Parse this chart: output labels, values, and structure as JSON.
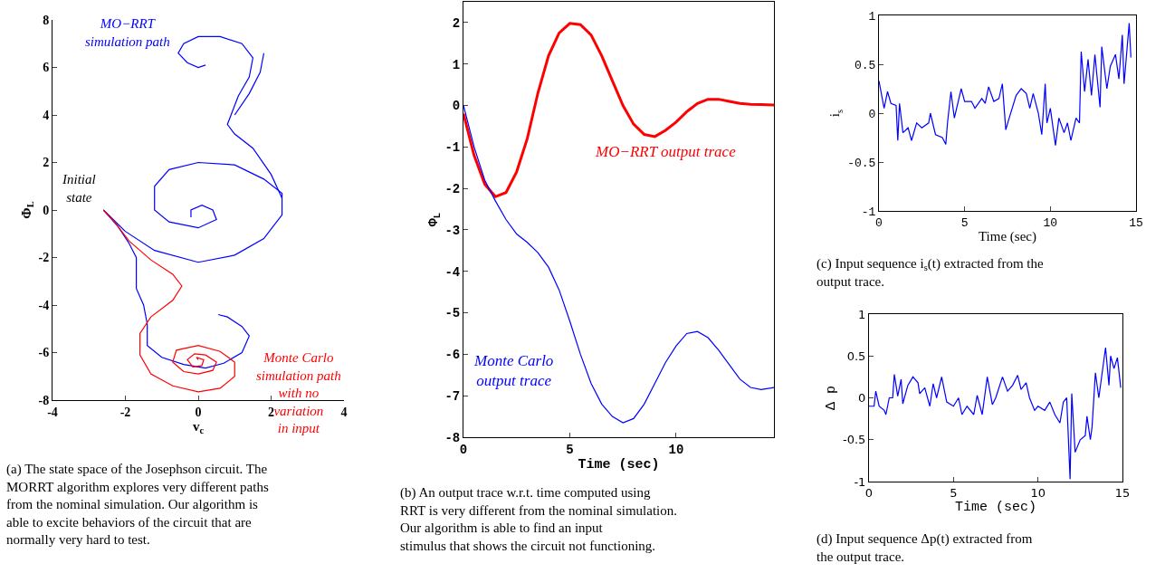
{
  "chart_data": [
    {
      "type": "line",
      "xlabel": "v$_{c}$",
      "ylabel": "Φ$_{L}$",
      "xlim": [
        -4,
        4
      ],
      "ylim": [
        -8,
        8
      ],
      "xticks": [
        -4,
        -2,
        0,
        2,
        4
      ],
      "yticks": [
        -8,
        -6,
        -4,
        -2,
        0,
        2,
        4,
        6,
        8
      ],
      "series": [
        {
          "color": "#0000ff",
          "x": [
            -2.6,
            -2.2,
            -1.9,
            -1.7,
            -1.7,
            -1.7,
            -1.5,
            -1.4,
            -1.4,
            -1.0,
            -0.4,
            0.2,
            0.7,
            1.2,
            1.4,
            1.2,
            0.8,
            0.55
          ],
          "values": [
            0,
            -0.7,
            -1.4,
            -2.0,
            -2.8,
            -3.3,
            -4.0,
            -4.8,
            -5.7,
            -6.2,
            -6.5,
            -6.65,
            -6.45,
            -6.0,
            -5.3,
            -4.9,
            -4.5,
            -4.4
          ]
        },
        {
          "color": "#0000ff",
          "x": [
            -2.6,
            -2.0,
            -1.2,
            0,
            1.0,
            1.8,
            2.3,
            2.3,
            1.8,
            1.0,
            0,
            -0.8,
            -1.2,
            -1.2,
            -0.8,
            0,
            0.5,
            0.4,
            0.1,
            -0.2,
            -0.2
          ],
          "values": [
            0,
            -0.9,
            -1.7,
            -2.2,
            -1.9,
            -1.2,
            -0.2,
            0.7,
            1.3,
            1.9,
            2.0,
            1.7,
            1.0,
            0,
            -0.5,
            -0.75,
            -0.4,
            0,
            0.2,
            0,
            -0.3
          ]
        },
        {
          "color": "#0000ff",
          "x": [
            2.3,
            2.0,
            1.5,
            1.0,
            0.8,
            0.9,
            1.1,
            1.4,
            1.5,
            1.2,
            0.6,
            0,
            -0.4,
            -0.55,
            -0.3,
            0,
            0.2
          ],
          "values": [
            0.5,
            1.5,
            2.6,
            3.2,
            3.6,
            4.0,
            4.8,
            5.6,
            6.4,
            7.0,
            7.3,
            7.3,
            7.0,
            6.6,
            6.2,
            6.0,
            6.1
          ]
        },
        {
          "color": "#0000ff",
          "x": [
            1.8,
            1.7,
            1.4,
            1.0
          ],
          "values": [
            6.6,
            5.8,
            4.9,
            4.0
          ]
        },
        {
          "color": "#ff0000",
          "x": [
            -2.6,
            -2.3,
            -1.9,
            -1.3,
            -0.7,
            -0.45,
            -0.7,
            -1.3,
            -1.6,
            -1.6,
            -1.3,
            -0.7,
            0,
            0.6,
            1.0,
            1.0,
            0.6,
            0,
            -0.6,
            -0.7,
            -0.4,
            0,
            0.4,
            0.5,
            0.2,
            -0.1,
            -0.3,
            -0.15,
            0.1,
            0.15,
            -0.05,
            0
          ],
          "values": [
            0,
            -0.5,
            -1.3,
            -2.1,
            -2.7,
            -3.2,
            -3.8,
            -4.5,
            -5.2,
            -6.1,
            -6.9,
            -7.4,
            -7.65,
            -7.5,
            -7.0,
            -6.4,
            -5.95,
            -5.7,
            -5.9,
            -6.4,
            -6.8,
            -6.9,
            -6.75,
            -6.4,
            -6.1,
            -6.05,
            -6.3,
            -6.6,
            -6.55,
            -6.3,
            -6.2,
            -6.3
          ]
        }
      ],
      "annotations": [
        {
          "text": "MO−RRT\nsimulation path",
          "x": -0.55,
          "y": 6.6
        },
        {
          "text": "Initial\nstate",
          "x": -2.6,
          "y": 0
        },
        {
          "text": "Monte Carlo\nsimulation path\nwith no\nvariation\nin input",
          "x": 1.0,
          "y": -6.4
        },
        "(a) The state space of the Josephson circuit. The\nMORRT algorithm explores very different paths\nfrom the nominal simulation. Our algorithm is\nable to excite behaviors of the circuit that are\nnormally very hard to test."
      ]
    },
    {
      "type": "line",
      "xlabel": "Time (sec)",
      "ylabel": "Φ$_{L}$",
      "xlim": [
        0,
        14.6
      ],
      "ylim": [
        -8,
        2.5
      ],
      "xticks": [
        0,
        5,
        10
      ],
      "yticks": [
        -8,
        -7,
        -6,
        -5,
        -4,
        -3,
        -2,
        -1,
        0,
        1,
        2
      ],
      "series": [
        {
          "color": "#ff0000",
          "x": [
            0,
            0.5,
            1,
            1.5,
            2,
            2.5,
            3,
            3.5,
            4,
            4.5,
            5,
            5.5,
            6,
            6.5,
            7,
            7.5,
            8,
            8.5,
            9,
            9.5,
            10,
            10.5,
            11,
            11.5,
            12,
            12.5,
            13,
            13.5,
            14,
            14.6
          ],
          "values": [
            -0.2,
            -1.2,
            -1.9,
            -2.2,
            -2.1,
            -1.6,
            -0.8,
            0.3,
            1.2,
            1.75,
            1.98,
            1.95,
            1.7,
            1.2,
            0.6,
            0,
            -0.45,
            -0.7,
            -0.75,
            -0.6,
            -0.4,
            -0.15,
            0.05,
            0.15,
            0.15,
            0.1,
            0.05,
            0.03,
            0.02,
            0.01
          ]
        },
        {
          "color": "#0000ff",
          "x": [
            0,
            0.5,
            1,
            1.5,
            2,
            2.5,
            3,
            3.5,
            4,
            4.5,
            5,
            5.5,
            6,
            6.5,
            7,
            7.5,
            8,
            8.5,
            9,
            9.5,
            10,
            10.5,
            11,
            11.5,
            12,
            12.5,
            13,
            13.5,
            14,
            14.6
          ],
          "values": [
            0,
            -1.0,
            -1.8,
            -2.3,
            -2.75,
            -3.1,
            -3.3,
            -3.55,
            -3.9,
            -4.45,
            -5.2,
            -6.0,
            -6.7,
            -7.2,
            -7.5,
            -7.65,
            -7.55,
            -7.2,
            -6.7,
            -6.2,
            -5.8,
            -5.5,
            -5.45,
            -5.6,
            -5.9,
            -6.25,
            -6.6,
            -6.8,
            -6.85,
            -6.8
          ]
        }
      ],
      "annotations": [
        {
          "text": "MO−RRT output trace",
          "x": 9.5,
          "y": -0.6
        },
        {
          "text": "Monte Carlo\noutput trace",
          "x": 5.5,
          "y": -6.0
        },
        "(b) An output trace w.r.t. time computed using\nRRT is very different from the nominal simulation.\nOur algorithm is able to find an input\nstimulus that shows the circuit not functioning."
      ]
    },
    {
      "type": "line",
      "xlabel": "Time (sec)",
      "ylabel": "i$_{s}$",
      "xlim": [
        0,
        15
      ],
      "ylim": [
        -1,
        1
      ],
      "xticks": [
        0,
        5,
        10,
        15
      ],
      "yticks": [
        -1,
        -0.5,
        0,
        0.5,
        1
      ],
      "series": [
        {
          "color": "#0000ff",
          "x": [
            0,
            0.3,
            0.5,
            0.7,
            1.0,
            1.1,
            1.2,
            1.4,
            1.7,
            1.9,
            2.2,
            2.5,
            2.9,
            3.0,
            3.3,
            3.7,
            3.9,
            4.0,
            4.2,
            4.4,
            4.8,
            5.0,
            5.4,
            5.6,
            6.0,
            6.2,
            6.4,
            6.7,
            7.0,
            7.2,
            7.4,
            7.6,
            8.0,
            8.3,
            8.6,
            8.8,
            9.0,
            9.3,
            9.5,
            9.7,
            9.8,
            10.0,
            10.3,
            10.5,
            10.8,
            11.0,
            11.2,
            11.5,
            11.7,
            11.8,
            12.0,
            12.2,
            12.4,
            12.6,
            12.9,
            13.0,
            13.3,
            13.5,
            13.8,
            14.0,
            14.2,
            14.3,
            14.4,
            14.6,
            14.7
          ],
          "values": [
            0.33,
            0.05,
            0.22,
            0.1,
            0.08,
            -0.28,
            0.1,
            -0.2,
            -0.15,
            -0.28,
            -0.1,
            -0.15,
            -0.1,
            0.0,
            -0.22,
            -0.25,
            -0.32,
            -0.1,
            0.22,
            -0.05,
            0.25,
            0.12,
            0.12,
            0.05,
            0.15,
            0.1,
            0.27,
            0.12,
            0.15,
            0.3,
            -0.17,
            -0.05,
            0.18,
            0.25,
            0.2,
            0.05,
            0.2,
            0.0,
            -0.22,
            0.3,
            -0.1,
            0.05,
            -0.33,
            -0.05,
            -0.2,
            -0.1,
            -0.28,
            -0.05,
            -0.1,
            0.63,
            0.22,
            0.55,
            0.18,
            0.6,
            0.06,
            0.68,
            0.25,
            0.48,
            0.6,
            0.35,
            0.8,
            0.3,
            0.5,
            0.92,
            0.57
          ]
        }
      ],
      "annotations": [
        "(c) Input sequence i$_{s}$(t) extracted from the\noutput trace."
      ]
    },
    {
      "type": "line",
      "xlabel": "Time (sec)",
      "ylabel": "Δ p",
      "xlim": [
        0,
        15
      ],
      "ylim": [
        -1,
        1
      ],
      "xticks": [
        0,
        5,
        10,
        15
      ],
      "yticks": [
        -1,
        -0.5,
        0,
        0.5,
        1
      ],
      "series": [
        {
          "color": "#0000ff",
          "x": [
            0,
            0.3,
            0.4,
            0.6,
            0.9,
            1.0,
            1.2,
            1.4,
            1.5,
            1.7,
            1.9,
            2.0,
            2.3,
            2.6,
            2.9,
            3.0,
            3.3,
            3.6,
            3.8,
            4.0,
            4.3,
            4.6,
            5.0,
            5.3,
            5.5,
            5.8,
            6.2,
            6.4,
            6.7,
            7.0,
            7.3,
            7.5,
            7.9,
            8.2,
            8.5,
            8.8,
            9.0,
            9.3,
            9.5,
            9.8,
            10.0,
            10.4,
            10.7,
            11.0,
            11.3,
            11.5,
            11.7,
            11.9,
            12.0,
            12.2,
            12.5,
            12.8,
            12.9,
            13.1,
            13.2,
            13.4,
            13.6,
            13.8,
            14.0,
            14.2,
            14.3,
            14.5,
            14.7,
            14.9
          ],
          "values": [
            -0.1,
            -0.1,
            0.08,
            -0.1,
            -0.15,
            -0.2,
            0.0,
            0.0,
            0.28,
            0.02,
            0.22,
            -0.07,
            0.15,
            0.25,
            0.18,
            0.05,
            0.12,
            -0.1,
            0.17,
            0.0,
            0.25,
            -0.05,
            -0.1,
            0.0,
            -0.2,
            -0.1,
            -0.2,
            0.03,
            -0.2,
            0.25,
            -0.08,
            0.0,
            0.25,
            0.08,
            0.15,
            0.27,
            0.1,
            0.18,
            0.0,
            -0.15,
            -0.1,
            -0.15,
            -0.05,
            -0.2,
            -0.3,
            -0.05,
            0.0,
            -0.97,
            0.05,
            -0.65,
            -0.5,
            -0.45,
            -0.22,
            -0.5,
            -0.35,
            0.3,
            0.0,
            0.3,
            0.6,
            0.15,
            0.5,
            0.35,
            0.48,
            0.12
          ]
        }
      ],
      "annotations": [
        "(d) Input sequence Δp(t) extracted from\nthe output trace."
      ]
    }
  ]
}
